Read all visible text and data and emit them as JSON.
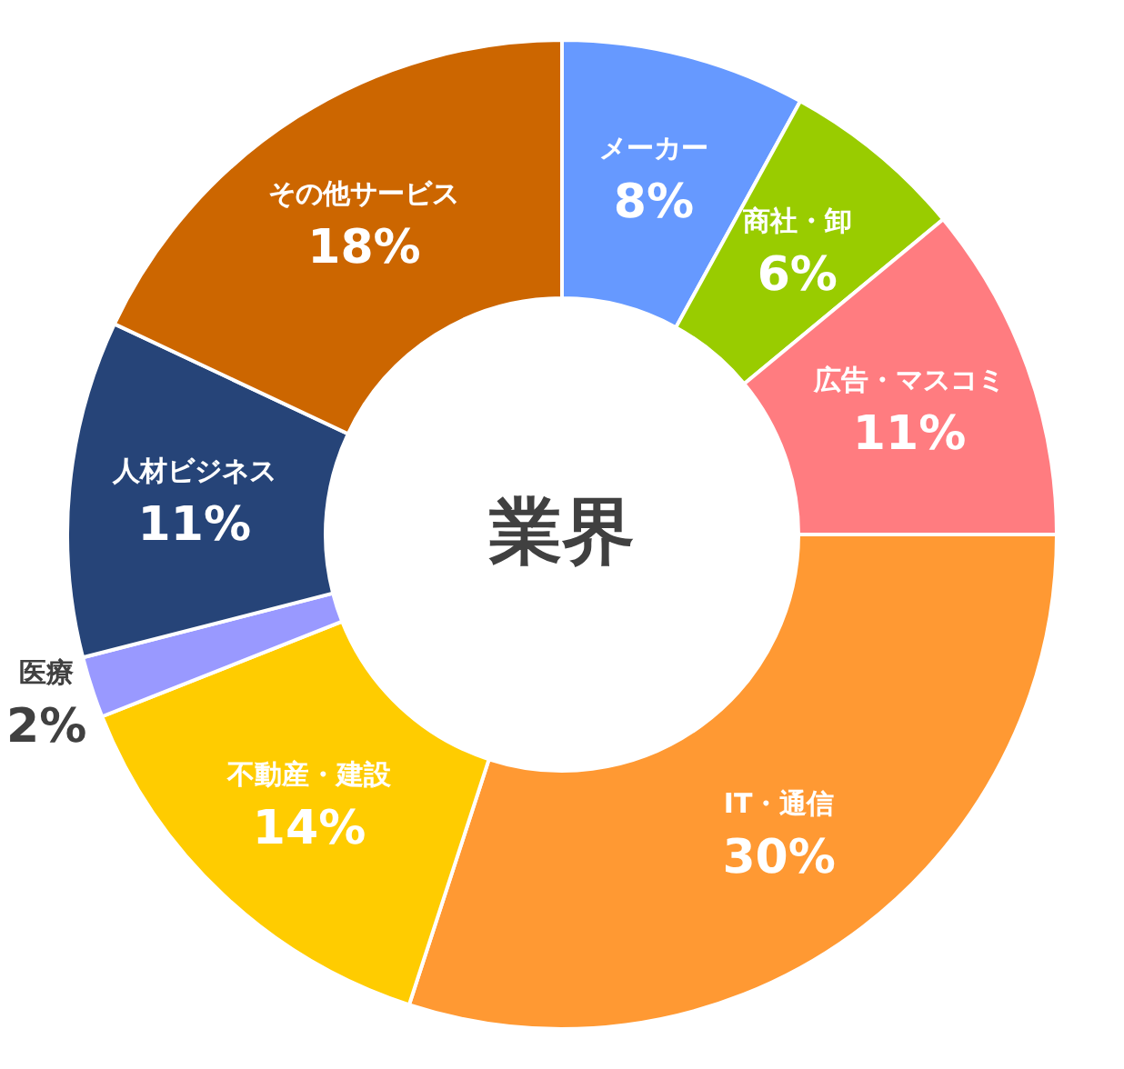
{
  "chart_data": {
    "type": "donut",
    "title": "業界",
    "categories": [
      "メーカー",
      "商社・卸",
      "広告・マスコミ",
      "IT・通信",
      "不動産・建設",
      "医療",
      "人材ビジネス",
      "その他サービス"
    ],
    "values": [
      8,
      6,
      11,
      30,
      14,
      2,
      11,
      18
    ],
    "colors": [
      "#6699ff",
      "#99cc00",
      "#ff7c80",
      "#ff9933",
      "#ffcc00",
      "#9999ff",
      "#264478",
      "#cc6600"
    ],
    "value_labels": [
      "8%",
      "6%",
      "11%",
      "30%",
      "14%",
      "2%",
      "11%",
      "18%"
    ]
  }
}
